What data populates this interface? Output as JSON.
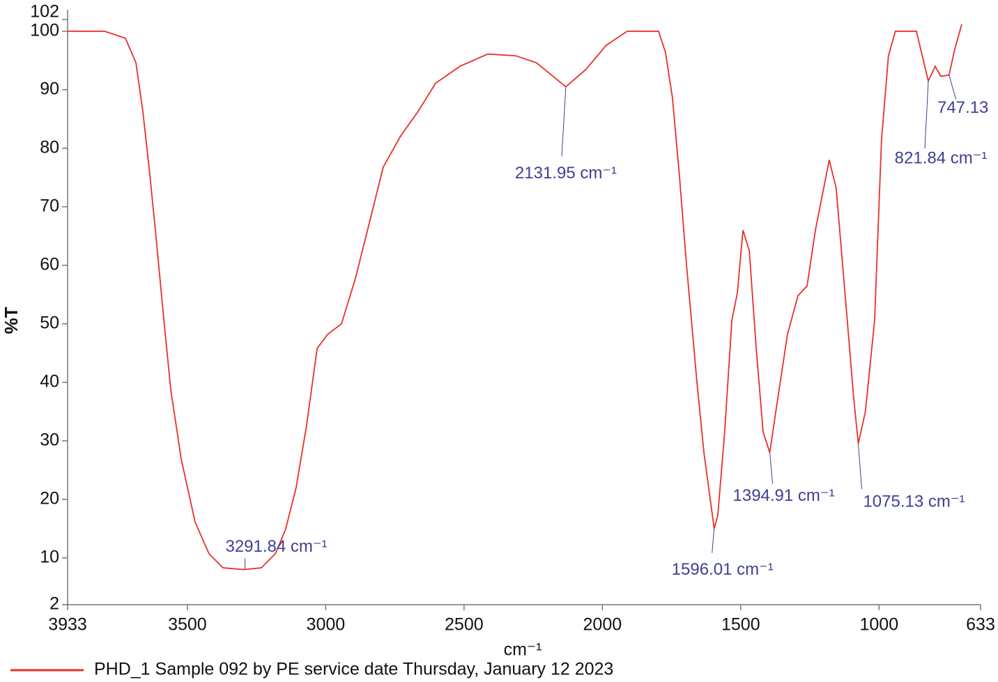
{
  "chart_data": {
    "type": "line",
    "xlabel": "cm⁻¹",
    "ylabel": "%T",
    "xlim": [
      3933,
      633
    ],
    "ylim": [
      2,
      102
    ],
    "xticks": [
      3933,
      3500,
      3000,
      2500,
      2000,
      1500,
      1000,
      633
    ],
    "yticks": [
      2,
      10,
      20,
      30,
      40,
      50,
      60,
      70,
      80,
      90,
      100,
      102
    ],
    "x": [
      3933,
      3800,
      3724,
      3686,
      3661,
      3636,
      3611,
      3585,
      3560,
      3522,
      3472,
      3422,
      3371,
      3296,
      3233,
      3182,
      3145,
      3107,
      3069,
      3031,
      2993,
      2943,
      2893,
      2842,
      2792,
      2729,
      2666,
      2603,
      2515,
      2414,
      2313,
      2238,
      2132,
      2061,
      1986,
      1910,
      1797,
      1772,
      1747,
      1722,
      1696,
      1658,
      1633,
      1596,
      1583,
      1558,
      1532,
      1512,
      1492,
      1469,
      1444,
      1419,
      1395,
      1369,
      1331,
      1293,
      1260,
      1230,
      1180,
      1155,
      1117,
      1092,
      1075,
      1049,
      1016,
      991,
      966,
      941,
      865,
      822,
      797,
      777,
      747,
      726,
      701
    ],
    "series": [
      {
        "name": "PHD_1 Sample 092 by PE service date Thursday, January 12 2023",
        "color": "#e8302a",
        "values": [
          100,
          100,
          98.8,
          94.6,
          86.3,
          75.6,
          63.7,
          50.6,
          38.7,
          26.8,
          16.1,
          10.7,
          8.3,
          8,
          8.3,
          10.7,
          14.9,
          22,
          32.7,
          45.8,
          48.2,
          50,
          57.7,
          67.3,
          76.8,
          82.1,
          86.3,
          91.1,
          94,
          96.1,
          95.8,
          94.6,
          90.5,
          93.4,
          97.6,
          100,
          100,
          96.4,
          88.7,
          75.6,
          60.1,
          39.9,
          28,
          15,
          17.2,
          31.5,
          50.6,
          55.3,
          66,
          62.5,
          45.8,
          31.5,
          28,
          36.3,
          48.2,
          54.8,
          56.5,
          66,
          78,
          73.2,
          51.8,
          37.5,
          29.5,
          35.1,
          50.6,
          81.5,
          95.8,
          100,
          100,
          91.5,
          94,
          92.3,
          92.5,
          97,
          101.2
        ]
      }
    ],
    "annotations": [
      {
        "text": "3291.84 cm⁻¹",
        "x": 3291.84,
        "y": 8
      },
      {
        "text": "2131.95 cm⁻¹",
        "x": 2131.95,
        "y": 90.5
      },
      {
        "text": "1596.01 cm⁻¹",
        "x": 1596.01,
        "y": 15
      },
      {
        "text": "1394.91 cm⁻¹",
        "x": 1394.91,
        "y": 28
      },
      {
        "text": "1075.13 cm⁻¹",
        "x": 1075.13,
        "y": 29.5
      },
      {
        "text": "821.84 cm⁻¹",
        "x": 821.84,
        "y": 91.5
      },
      {
        "text": "747.13",
        "x": 747.13,
        "y": 92.5
      }
    ]
  }
}
